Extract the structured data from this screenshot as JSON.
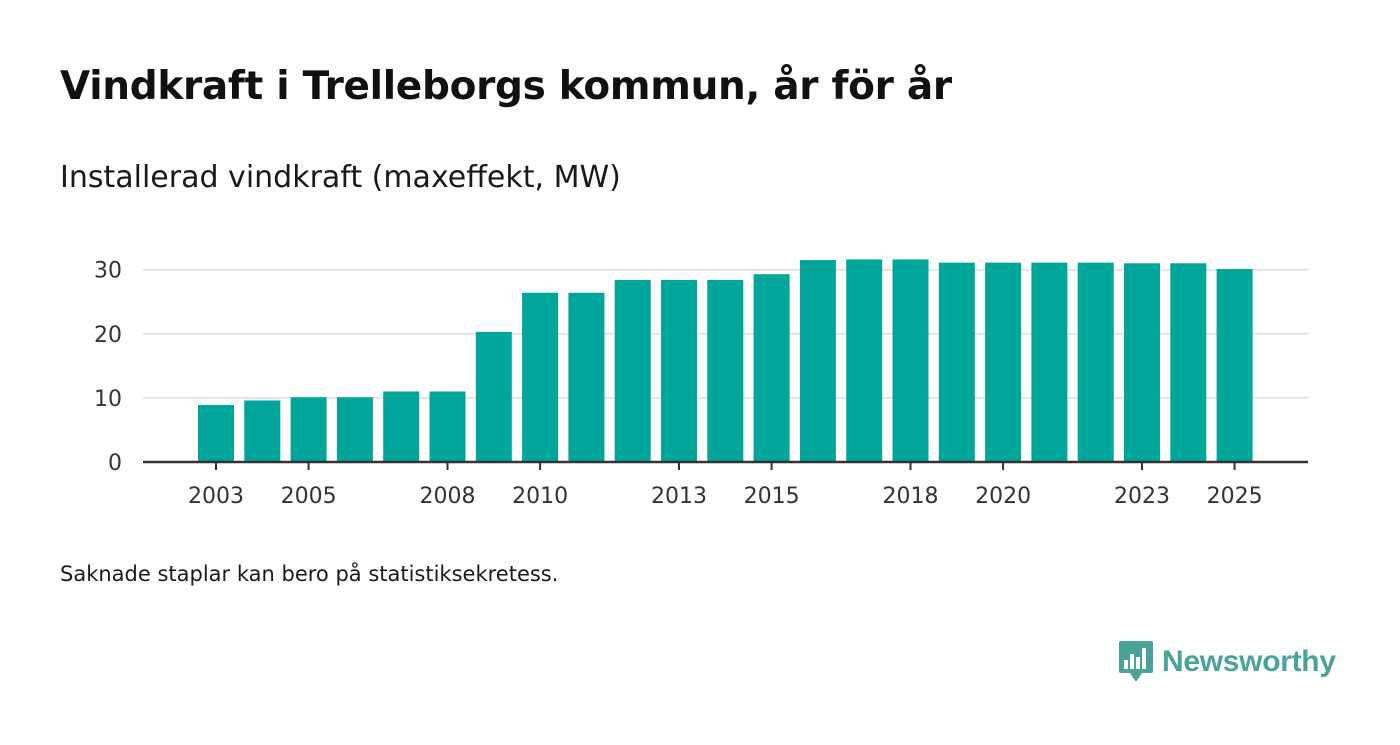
{
  "title": "Vindkraft i Trelleborgs kommun, år för år",
  "subtitle": "Installerad vindkraft (maxeffekt, MW)",
  "footnote": "Saknade staplar kan bero på statistiksekretess.",
  "brand": "Newsworthy",
  "colors": {
    "bar": "#00a699",
    "grid": "#dddddd",
    "axis": "#333333",
    "brand": "#4aa39b"
  },
  "chart_data": {
    "type": "bar",
    "title": "Vindkraft i Trelleborgs kommun, år för år",
    "ylabel": "Installerad vindkraft (maxeffekt, MW)",
    "xlabel": "",
    "ylim": [
      0,
      30
    ],
    "yticks": [
      0,
      10,
      20,
      30
    ],
    "xtick_labels": [
      "2003",
      "2005",
      "2008",
      "2010",
      "2013",
      "2015",
      "2018",
      "2020",
      "2023",
      "2025"
    ],
    "categories": [
      "2003",
      "2004",
      "2005",
      "2006",
      "2007",
      "2008",
      "2009",
      "2010",
      "2011",
      "2012",
      "2013",
      "2014",
      "2015",
      "2016",
      "2017",
      "2018",
      "2019",
      "2020",
      "2021",
      "2022",
      "2023",
      "2024",
      "2025"
    ],
    "values": [
      8.9,
      9.6,
      10.1,
      10.1,
      11.0,
      11.0,
      20.3,
      26.4,
      26.4,
      28.4,
      28.4,
      28.4,
      29.3,
      31.5,
      31.6,
      31.6,
      31.1,
      31.1,
      31.1,
      31.1,
      31.0,
      31.0,
      30.1
    ]
  }
}
